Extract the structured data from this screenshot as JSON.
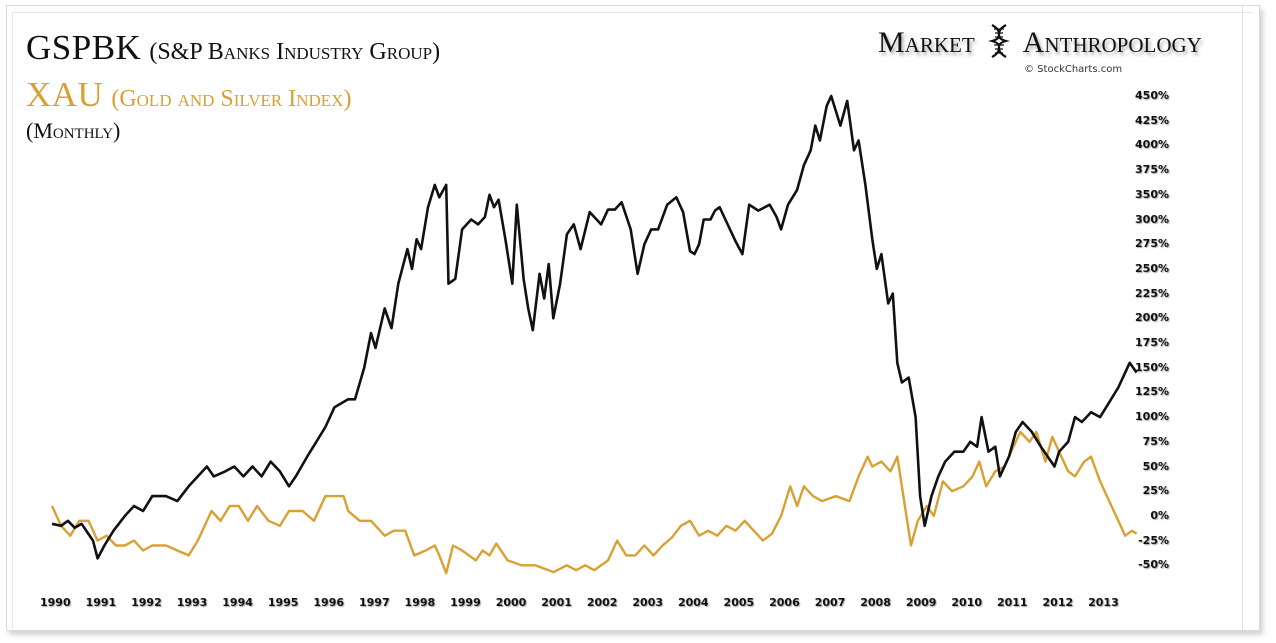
{
  "chart_data": {
    "type": "line",
    "title": "GSPBK (S&P Banks Industry Group) / XAU (Gold and Silver Index)",
    "subtitle": "(Monthly)",
    "xlabel": "",
    "ylabel": "",
    "grid": false,
    "legend": "none",
    "xlim": [
      1990,
      2014
    ],
    "ylim": [
      -50,
      450
    ],
    "x_ticks": [
      "1990",
      "1991",
      "1992",
      "1993",
      "1994",
      "1995",
      "1996",
      "1997",
      "1998",
      "1999",
      "2000",
      "2001",
      "2002",
      "2003",
      "2004",
      "2005",
      "2006",
      "2007",
      "2008",
      "2009",
      "2010",
      "2011",
      "2012",
      "2013"
    ],
    "y_ticks": [
      "450%",
      "425%",
      "400%",
      "375%",
      "350%",
      "300%",
      "275%",
      "250%",
      "225%",
      "200%",
      "175%",
      "150%",
      "125%",
      "100%",
      "75%",
      "50%",
      "25%",
      "0%",
      "-25%",
      "-50%"
    ],
    "series": [
      {
        "name": "GSPBK",
        "color": "#111111",
        "points": [
          [
            1990.0,
            -8
          ],
          [
            1990.2,
            -10
          ],
          [
            1990.35,
            -5
          ],
          [
            1990.5,
            -12
          ],
          [
            1990.65,
            -8
          ],
          [
            1990.9,
            -25
          ],
          [
            1991.0,
            -43
          ],
          [
            1991.15,
            -30
          ],
          [
            1991.35,
            -15
          ],
          [
            1991.6,
            0
          ],
          [
            1991.8,
            10
          ],
          [
            1992.0,
            5
          ],
          [
            1992.2,
            20
          ],
          [
            1992.5,
            20
          ],
          [
            1992.75,
            15
          ],
          [
            1993.0,
            30
          ],
          [
            1993.2,
            40
          ],
          [
            1993.4,
            50
          ],
          [
            1993.55,
            40
          ],
          [
            1993.8,
            45
          ],
          [
            1994.0,
            50
          ],
          [
            1994.2,
            40
          ],
          [
            1994.4,
            50
          ],
          [
            1994.6,
            40
          ],
          [
            1994.8,
            55
          ],
          [
            1995.0,
            45
          ],
          [
            1995.2,
            30
          ],
          [
            1995.35,
            40
          ],
          [
            1995.6,
            60
          ],
          [
            1995.8,
            75
          ],
          [
            1996.0,
            90
          ],
          [
            1996.2,
            110
          ],
          [
            1996.5,
            118
          ],
          [
            1996.65,
            118
          ],
          [
            1996.85,
            150
          ],
          [
            1997.0,
            185
          ],
          [
            1997.1,
            170
          ],
          [
            1997.3,
            210
          ],
          [
            1997.45,
            190
          ],
          [
            1997.6,
            235
          ],
          [
            1997.8,
            270
          ],
          [
            1997.9,
            250
          ],
          [
            1998.0,
            280
          ],
          [
            1998.1,
            270
          ],
          [
            1998.25,
            325
          ],
          [
            1998.4,
            360
          ],
          [
            1998.5,
            345
          ],
          [
            1998.65,
            360
          ],
          [
            1998.7,
            235
          ],
          [
            1998.85,
            240
          ],
          [
            1999.0,
            290
          ],
          [
            1999.2,
            300
          ],
          [
            1999.35,
            295
          ],
          [
            1999.5,
            305
          ],
          [
            1999.6,
            350
          ],
          [
            1999.7,
            325
          ],
          [
            1999.8,
            340
          ],
          [
            1999.95,
            280
          ],
          [
            2000.1,
            235
          ],
          [
            2000.2,
            330
          ],
          [
            2000.35,
            240
          ],
          [
            2000.45,
            210
          ],
          [
            2000.55,
            188
          ],
          [
            2000.7,
            245
          ],
          [
            2000.8,
            220
          ],
          [
            2000.9,
            255
          ],
          [
            2001.0,
            200
          ],
          [
            2001.15,
            235
          ],
          [
            2001.3,
            285
          ],
          [
            2001.45,
            295
          ],
          [
            2001.6,
            270
          ],
          [
            2001.8,
            315
          ],
          [
            2001.95,
            300
          ],
          [
            2002.05,
            295
          ],
          [
            2002.2,
            320
          ],
          [
            2002.35,
            320
          ],
          [
            2002.5,
            335
          ],
          [
            2002.7,
            290
          ],
          [
            2002.85,
            245
          ],
          [
            2003.0,
            275
          ],
          [
            2003.15,
            290
          ],
          [
            2003.3,
            290
          ],
          [
            2003.5,
            330
          ],
          [
            2003.7,
            345
          ],
          [
            2003.85,
            315
          ],
          [
            2004.0,
            268
          ],
          [
            2004.1,
            265
          ],
          [
            2004.2,
            275
          ],
          [
            2004.3,
            300
          ],
          [
            2004.45,
            300
          ],
          [
            2004.55,
            318
          ],
          [
            2004.65,
            325
          ],
          [
            2004.75,
            305
          ],
          [
            2005.0,
            278
          ],
          [
            2005.15,
            265
          ],
          [
            2005.3,
            330
          ],
          [
            2005.5,
            318
          ],
          [
            2005.75,
            330
          ],
          [
            2005.9,
            305
          ],
          [
            2006.0,
            290
          ],
          [
            2006.15,
            330
          ],
          [
            2006.35,
            355
          ],
          [
            2006.5,
            380
          ],
          [
            2006.65,
            395
          ],
          [
            2006.75,
            420
          ],
          [
            2006.85,
            405
          ],
          [
            2007.0,
            440
          ],
          [
            2007.1,
            450
          ],
          [
            2007.3,
            420
          ],
          [
            2007.45,
            445
          ],
          [
            2007.6,
            395
          ],
          [
            2007.7,
            405
          ],
          [
            2007.85,
            360
          ],
          [
            2008.0,
            280
          ],
          [
            2008.1,
            250
          ],
          [
            2008.2,
            265
          ],
          [
            2008.35,
            215
          ],
          [
            2008.45,
            225
          ],
          [
            2008.55,
            155
          ],
          [
            2008.65,
            135
          ],
          [
            2008.8,
            140
          ],
          [
            2008.95,
            100
          ],
          [
            2009.05,
            20
          ],
          [
            2009.15,
            -10
          ],
          [
            2009.3,
            20
          ],
          [
            2009.45,
            40
          ],
          [
            2009.6,
            55
          ],
          [
            2009.8,
            65
          ],
          [
            2010.0,
            65
          ],
          [
            2010.15,
            75
          ],
          [
            2010.3,
            70
          ],
          [
            2010.4,
            100
          ],
          [
            2010.55,
            65
          ],
          [
            2010.7,
            70
          ],
          [
            2010.8,
            40
          ],
          [
            2011.0,
            60
          ],
          [
            2011.15,
            85
          ],
          [
            2011.3,
            95
          ],
          [
            2011.5,
            85
          ],
          [
            2011.7,
            70
          ],
          [
            2011.85,
            60
          ],
          [
            2012.0,
            50
          ],
          [
            2012.1,
            65
          ],
          [
            2012.3,
            75
          ],
          [
            2012.45,
            100
          ],
          [
            2012.6,
            95
          ],
          [
            2012.8,
            105
          ],
          [
            2013.0,
            100
          ],
          [
            2013.2,
            115
          ],
          [
            2013.4,
            130
          ],
          [
            2013.55,
            145
          ],
          [
            2013.65,
            155
          ],
          [
            2013.8,
            145
          ]
        ]
      },
      {
        "name": "XAU",
        "color": "#d9a033",
        "points": [
          [
            1990.0,
            10
          ],
          [
            1990.2,
            -10
          ],
          [
            1990.4,
            -20
          ],
          [
            1990.6,
            -5
          ],
          [
            1990.8,
            -5
          ],
          [
            1991.0,
            -25
          ],
          [
            1991.2,
            -20
          ],
          [
            1991.4,
            -30
          ],
          [
            1991.6,
            -30
          ],
          [
            1991.8,
            -25
          ],
          [
            1992.0,
            -35
          ],
          [
            1992.2,
            -30
          ],
          [
            1992.5,
            -30
          ],
          [
            1992.75,
            -35
          ],
          [
            1993.0,
            -40
          ],
          [
            1993.2,
            -25
          ],
          [
            1993.5,
            5
          ],
          [
            1993.7,
            -5
          ],
          [
            1993.9,
            10
          ],
          [
            1994.1,
            10
          ],
          [
            1994.3,
            -5
          ],
          [
            1994.5,
            10
          ],
          [
            1994.75,
            -5
          ],
          [
            1995.0,
            -10
          ],
          [
            1995.2,
            5
          ],
          [
            1995.5,
            5
          ],
          [
            1995.75,
            -5
          ],
          [
            1996.0,
            20
          ],
          [
            1996.4,
            20
          ],
          [
            1996.5,
            5
          ],
          [
            1996.75,
            -5
          ],
          [
            1997.0,
            -5
          ],
          [
            1997.3,
            -20
          ],
          [
            1997.5,
            -15
          ],
          [
            1997.75,
            -15
          ],
          [
            1997.95,
            -40
          ],
          [
            1998.2,
            -35
          ],
          [
            1998.4,
            -30
          ],
          [
            1998.5,
            -40
          ],
          [
            1998.65,
            -58
          ],
          [
            1998.8,
            -30
          ],
          [
            1999.0,
            -35
          ],
          [
            1999.3,
            -45
          ],
          [
            1999.45,
            -35
          ],
          [
            1999.6,
            -40
          ],
          [
            1999.75,
            -28
          ],
          [
            2000.0,
            -45
          ],
          [
            2000.3,
            -50
          ],
          [
            2000.6,
            -50
          ],
          [
            2000.9,
            -55
          ],
          [
            2001.0,
            -57
          ],
          [
            2001.3,
            -50
          ],
          [
            2001.5,
            -55
          ],
          [
            2001.7,
            -50
          ],
          [
            2001.9,
            -55
          ],
          [
            2002.2,
            -45
          ],
          [
            2002.4,
            -25
          ],
          [
            2002.6,
            -40
          ],
          [
            2002.8,
            -40
          ],
          [
            2003.0,
            -30
          ],
          [
            2003.2,
            -40
          ],
          [
            2003.4,
            -30
          ],
          [
            2003.6,
            -22
          ],
          [
            2003.8,
            -10
          ],
          [
            2004.0,
            -5
          ],
          [
            2004.2,
            -20
          ],
          [
            2004.4,
            -15
          ],
          [
            2004.6,
            -20
          ],
          [
            2004.8,
            -10
          ],
          [
            2005.0,
            -15
          ],
          [
            2005.2,
            -5
          ],
          [
            2005.4,
            -15
          ],
          [
            2005.6,
            -25
          ],
          [
            2005.8,
            -18
          ],
          [
            2006.0,
            0
          ],
          [
            2006.2,
            30
          ],
          [
            2006.35,
            10
          ],
          [
            2006.5,
            30
          ],
          [
            2006.7,
            20
          ],
          [
            2006.9,
            15
          ],
          [
            2007.2,
            20
          ],
          [
            2007.5,
            15
          ],
          [
            2007.7,
            40
          ],
          [
            2007.9,
            60
          ],
          [
            2008.0,
            50
          ],
          [
            2008.2,
            55
          ],
          [
            2008.4,
            45
          ],
          [
            2008.55,
            60
          ],
          [
            2008.75,
            0
          ],
          [
            2008.85,
            -30
          ],
          [
            2009.0,
            -5
          ],
          [
            2009.2,
            10
          ],
          [
            2009.35,
            0
          ],
          [
            2009.55,
            35
          ],
          [
            2009.75,
            25
          ],
          [
            2010.0,
            30
          ],
          [
            2010.2,
            40
          ],
          [
            2010.35,
            55
          ],
          [
            2010.5,
            30
          ],
          [
            2010.7,
            45
          ],
          [
            2010.9,
            50
          ],
          [
            2011.1,
            70
          ],
          [
            2011.25,
            85
          ],
          [
            2011.45,
            75
          ],
          [
            2011.6,
            85
          ],
          [
            2011.8,
            55
          ],
          [
            2011.95,
            80
          ],
          [
            2012.1,
            65
          ],
          [
            2012.3,
            45
          ],
          [
            2012.45,
            40
          ],
          [
            2012.65,
            55
          ],
          [
            2012.8,
            60
          ],
          [
            2013.0,
            35
          ],
          [
            2013.2,
            15
          ],
          [
            2013.4,
            -5
          ],
          [
            2013.55,
            -20
          ],
          [
            2013.7,
            -15
          ],
          [
            2013.8,
            -18
          ]
        ]
      }
    ]
  },
  "header": {
    "line1_symbol": "GSPBK",
    "line1_desc": "(S&P Banks Industry Group)",
    "line2_symbol": "XAU",
    "line2_desc": "(Gold and Silver Index)",
    "line3": "(Monthly)"
  },
  "brand": {
    "word1": "Market",
    "word2": "Anthropology",
    "icon": "dna-helix-icon",
    "copyright": "© StockCharts.com"
  }
}
